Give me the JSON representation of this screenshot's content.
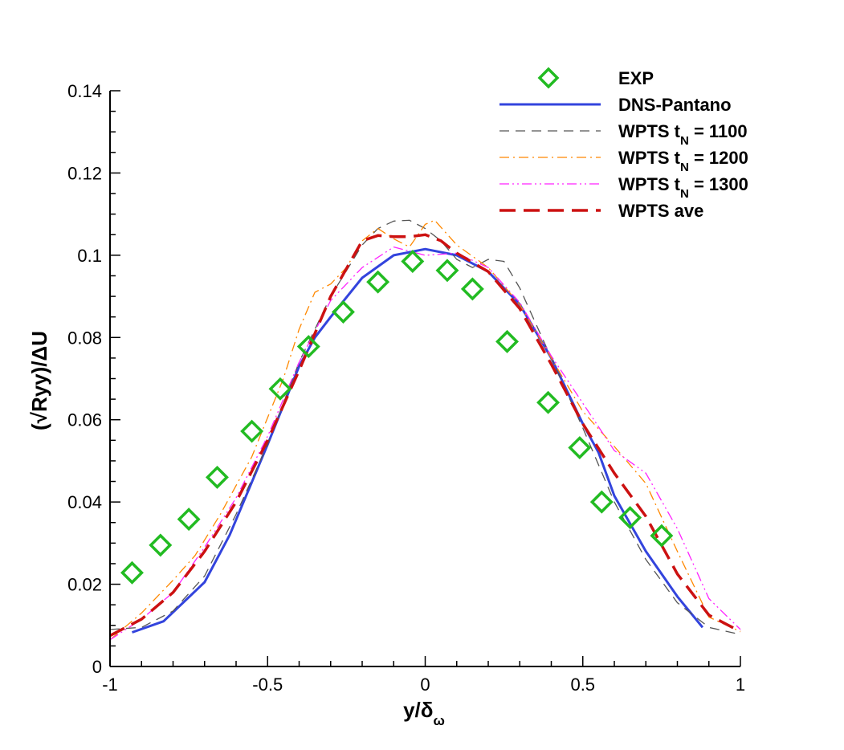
{
  "chart_data": {
    "type": "line",
    "title": "",
    "xlabel": "y/δω",
    "xlabel_main": "y/δ",
    "xlabel_sub": "ω",
    "ylabel": "(√Ryy)/ΔU",
    "xlim": [
      -1,
      1
    ],
    "ylim": [
      0,
      0.14
    ],
    "xticks": [
      -1,
      -0.5,
      0,
      0.5,
      1
    ],
    "xtick_labels": [
      "-1",
      "-0.5",
      "0",
      "0.5",
      "1"
    ],
    "yticks": [
      0,
      0.02,
      0.04,
      0.06,
      0.08,
      0.1,
      0.12,
      0.14
    ],
    "ytick_labels": [
      "0",
      "0.02",
      "0.04",
      "0.06",
      "0.08",
      "0.1",
      "0.12",
      "0.14"
    ],
    "grid": false,
    "legend_position": "top-right",
    "series": [
      {
        "name": "EXP",
        "label_main": "EXP",
        "label_sub": "",
        "label_tail": "",
        "kind": "marker",
        "color": "#22bb22",
        "x": [
          -0.93,
          -0.84,
          -0.75,
          -0.66,
          -0.55,
          -0.46,
          -0.37,
          -0.26,
          -0.15,
          -0.04,
          0.07,
          0.15,
          0.26,
          0.39,
          0.49,
          0.56,
          0.65,
          0.75
        ],
        "y": [
          0.0228,
          0.0295,
          0.0358,
          0.046,
          0.0572,
          0.0675,
          0.0778,
          0.0862,
          0.0935,
          0.0985,
          0.0963,
          0.0918,
          0.079,
          0.0642,
          0.0532,
          0.04,
          0.0362,
          0.0318
        ]
      },
      {
        "name": "DNS-Pantano",
        "label_main": "DNS-Pantano",
        "label_sub": "",
        "label_tail": "",
        "kind": "solid",
        "color": "#3344dd",
        "x": [
          -0.93,
          -0.83,
          -0.7,
          -0.62,
          -0.5,
          -0.4,
          -0.35,
          -0.3,
          -0.2,
          -0.1,
          0.0,
          0.1,
          0.2,
          0.3,
          0.4,
          0.5,
          0.55,
          0.6,
          0.7,
          0.8,
          0.88
        ],
        "y": [
          0.0083,
          0.011,
          0.0205,
          0.032,
          0.054,
          0.073,
          0.08,
          0.085,
          0.0945,
          0.1,
          0.1015,
          0.1,
          0.096,
          0.088,
          0.075,
          0.059,
          0.052,
          0.0415,
          0.028,
          0.017,
          0.0095
        ]
      },
      {
        "name": "WPTS tN = 1100",
        "label_main": "WPTS t",
        "label_sub": "N",
        "label_tail": " = 1100",
        "kind": "dashed",
        "color": "#555555",
        "x": [
          -1,
          -0.9,
          -0.8,
          -0.7,
          -0.6,
          -0.5,
          -0.4,
          -0.3,
          -0.2,
          -0.15,
          -0.1,
          -0.05,
          0.0,
          0.05,
          0.1,
          0.15,
          0.2,
          0.25,
          0.3,
          0.4,
          0.5,
          0.6,
          0.7,
          0.8,
          0.9,
          1.0
        ],
        "y": [
          0.009,
          0.0095,
          0.0135,
          0.022,
          0.037,
          0.054,
          0.074,
          0.09,
          0.1025,
          0.1065,
          0.1083,
          0.1085,
          0.1065,
          0.1035,
          0.099,
          0.097,
          0.099,
          0.0985,
          0.092,
          0.075,
          0.058,
          0.04,
          0.026,
          0.0155,
          0.0095,
          0.0078
        ]
      },
      {
        "name": "WPTS tN = 1200",
        "label_main": "WPTS t",
        "label_sub": "N",
        "label_tail": " = 1200",
        "kind": "dashdot",
        "color": "#ff8800",
        "x": [
          -1,
          -0.9,
          -0.8,
          -0.73,
          -0.65,
          -0.55,
          -0.45,
          -0.4,
          -0.35,
          -0.3,
          -0.25,
          -0.2,
          -0.15,
          -0.1,
          -0.05,
          0.0,
          0.03,
          0.1,
          0.2,
          0.3,
          0.4,
          0.5,
          0.6,
          0.7,
          0.8,
          0.9,
          1.0
        ],
        "y": [
          0.0065,
          0.013,
          0.021,
          0.027,
          0.037,
          0.051,
          0.07,
          0.082,
          0.091,
          0.093,
          0.097,
          0.1035,
          0.1065,
          0.104,
          0.102,
          0.1075,
          0.1085,
          0.1025,
          0.097,
          0.088,
          0.075,
          0.062,
          0.0535,
          0.0445,
          0.028,
          0.012,
          0.0085
        ]
      },
      {
        "name": "WPTS tN = 1300",
        "label_main": "WPTS t",
        "label_sub": "N",
        "label_tail": " = 1300",
        "kind": "dashdotdot",
        "color": "#ff22ff",
        "x": [
          -1,
          -0.9,
          -0.8,
          -0.7,
          -0.6,
          -0.5,
          -0.4,
          -0.3,
          -0.2,
          -0.1,
          0.0,
          0.1,
          0.2,
          0.3,
          0.4,
          0.5,
          0.6,
          0.7,
          0.8,
          0.9,
          1.0
        ],
        "y": [
          0.0065,
          0.0115,
          0.018,
          0.029,
          0.041,
          0.056,
          0.074,
          0.089,
          0.097,
          0.102,
          0.1,
          0.1005,
          0.097,
          0.0885,
          0.0755,
          0.064,
          0.0525,
          0.047,
          0.0335,
          0.0165,
          0.009
        ]
      },
      {
        "name": "WPTS ave",
        "label_main": "WPTS ave",
        "label_sub": "",
        "label_tail": "",
        "kind": "longdash",
        "color": "#cc1111",
        "x": [
          -1,
          -0.9,
          -0.8,
          -0.7,
          -0.6,
          -0.5,
          -0.4,
          -0.3,
          -0.2,
          -0.15,
          -0.1,
          -0.05,
          0.0,
          0.05,
          0.1,
          0.2,
          0.3,
          0.4,
          0.5,
          0.6,
          0.7,
          0.8,
          0.9,
          1.0
        ],
        "y": [
          0.0075,
          0.0115,
          0.018,
          0.028,
          0.04,
          0.055,
          0.072,
          0.09,
          0.1035,
          0.1048,
          0.1045,
          0.1045,
          0.105,
          0.1035,
          0.1005,
          0.096,
          0.087,
          0.0735,
          0.059,
          0.047,
          0.0365,
          0.0225,
          0.0125,
          0.0085
        ]
      }
    ]
  }
}
